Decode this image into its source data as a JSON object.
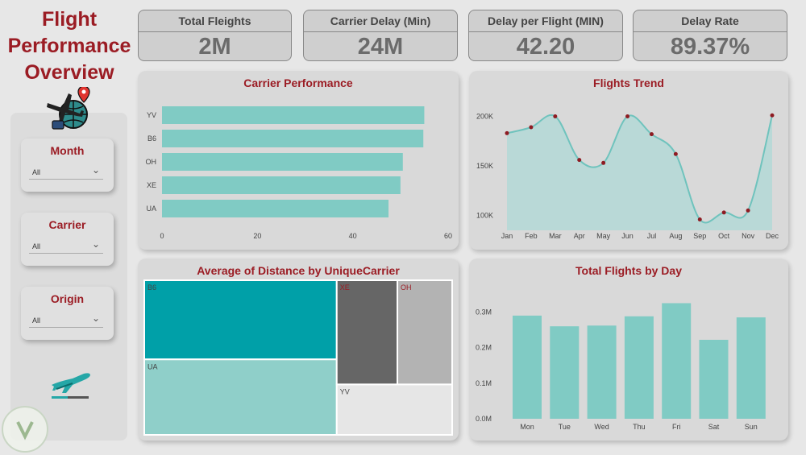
{
  "title": {
    "line1": "Flight",
    "line2": "Performance",
    "line3": "Overview"
  },
  "kpis": [
    {
      "label": "Total Fleights",
      "value": "2M"
    },
    {
      "label": "Carrier Delay (Min)",
      "value": "24M"
    },
    {
      "label": "Delay per Flight (MIN)",
      "value": "42.20"
    },
    {
      "label": "Delay Rate",
      "value": "89.37%"
    }
  ],
  "slicers": [
    {
      "label": "Month",
      "value": "All"
    },
    {
      "label": "Carrier",
      "value": "All"
    },
    {
      "label": "Origin",
      "value": "All"
    }
  ],
  "colors": {
    "teal": "#80cbc4",
    "dark_teal": "#00a0a8",
    "maroon": "#9b1c24",
    "grey_dark": "#666666",
    "grey_mid": "#b3b3b3"
  },
  "chart_data": [
    {
      "type": "bar",
      "orientation": "horizontal",
      "title": "Carrier Performance",
      "categories": [
        "YV",
        "B6",
        "OH",
        "XE",
        "UA"
      ],
      "values": [
        55,
        54.8,
        50.5,
        50,
        47.5
      ],
      "xlim": [
        0,
        60
      ],
      "xticks": [
        "0",
        "20",
        "40",
        "60"
      ]
    },
    {
      "type": "area",
      "title": "Flights Trend",
      "categories": [
        "Jan",
        "Feb",
        "Mar",
        "Apr",
        "May",
        "Jun",
        "Jul",
        "Aug",
        "Sep",
        "Oct",
        "Nov",
        "Dec"
      ],
      "values": [
        183000,
        189000,
        200000,
        156000,
        153000,
        200000,
        182000,
        162000,
        96000,
        103000,
        105000,
        201000
      ],
      "ylim": [
        85000,
        215000
      ],
      "yticks": [
        {
          "v": 200000,
          "label": "200K"
        },
        {
          "v": 150000,
          "label": "150K"
        },
        {
          "v": 100000,
          "label": "100K"
        }
      ]
    },
    {
      "type": "treemap",
      "title": "Average of Distance by UniqueCarrier",
      "items": [
        {
          "name": "B6",
          "value": 1091
        },
        {
          "name": "UA",
          "value": 1041
        },
        {
          "name": "XE",
          "value": 453
        },
        {
          "name": "OH",
          "value": 409
        },
        {
          "name": "YV",
          "value": 417
        }
      ]
    },
    {
      "type": "bar",
      "title": "Total Flights by Day",
      "categories": [
        "Mon",
        "Tue",
        "Wed",
        "Thu",
        "Fri",
        "Sat",
        "Sun"
      ],
      "values": [
        0.29,
        0.26,
        0.262,
        0.288,
        0.325,
        0.222,
        0.285
      ],
      "ylim": [
        0,
        0.36
      ],
      "yticks": [
        {
          "v": 0.3,
          "label": "0.3M"
        },
        {
          "v": 0.2,
          "label": "0.2M"
        },
        {
          "v": 0.1,
          "label": "0.1M"
        },
        {
          "v": 0,
          "label": "0.0M"
        }
      ]
    }
  ]
}
